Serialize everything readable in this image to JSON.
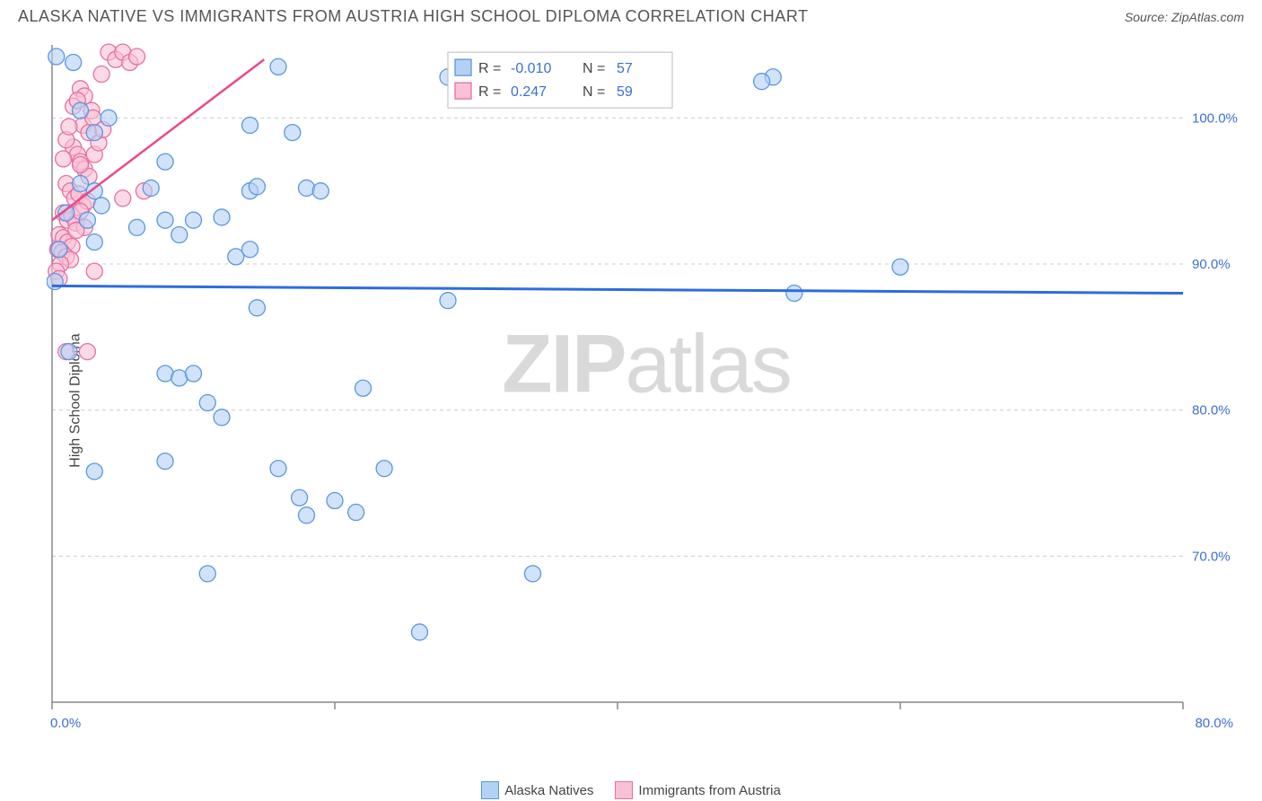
{
  "header": {
    "title": "ALASKA NATIVE VS IMMIGRANTS FROM AUSTRIA HIGH SCHOOL DIPLOMA CORRELATION CHART",
    "source_prefix": "Source: ",
    "source": "ZipAtlas.com"
  },
  "chart": {
    "type": "scatter",
    "ylabel": "High School Diploma",
    "xlim": [
      0,
      80
    ],
    "ylim": [
      60,
      105
    ],
    "xtick_step": 20,
    "xtick_labels": [
      "0.0%",
      "",
      "",
      "",
      "80.0%"
    ],
    "ytick_values": [
      70,
      80,
      90,
      100
    ],
    "ytick_labels": [
      "70.0%",
      "80.0%",
      "90.0%",
      "100.0%"
    ],
    "grid_color": "#cccccc",
    "axis_color": "#888888",
    "background_color": "#ffffff",
    "marker_radius": 9,
    "series": [
      {
        "name": "Alaska Natives",
        "color_fill": "#b3d1f5",
        "color_stroke": "#5a97e0",
        "trend_color": "#2d6cdf",
        "trend": {
          "x1": 0,
          "y1": 88.5,
          "x2": 80,
          "y2": 88.0
        },
        "R": "-0.010",
        "N": "57",
        "points": [
          [
            0.3,
            104.2
          ],
          [
            1.5,
            103.8
          ],
          [
            16,
            103.5
          ],
          [
            28,
            102.8
          ],
          [
            51,
            102.8
          ],
          [
            50.2,
            102.5
          ],
          [
            52.5,
            88.0
          ],
          [
            2,
            100.5
          ],
          [
            3,
            99.0
          ],
          [
            4,
            100.0
          ],
          [
            14,
            99.5
          ],
          [
            17,
            99.0
          ],
          [
            2,
            95.5
          ],
          [
            3,
            95.0
          ],
          [
            7,
            95.2
          ],
          [
            8,
            97.0
          ],
          [
            14,
            95.0
          ],
          [
            14.5,
            95.3
          ],
          [
            18,
            95.2
          ],
          [
            19,
            95.0
          ],
          [
            1,
            93.5
          ],
          [
            2.5,
            93.0
          ],
          [
            3.5,
            94.0
          ],
          [
            6,
            92.5
          ],
          [
            8,
            93.0
          ],
          [
            9,
            92.0
          ],
          [
            10,
            93.0
          ],
          [
            12,
            93.2
          ],
          [
            13,
            90.5
          ],
          [
            14,
            91.0
          ],
          [
            0.2,
            88.8
          ],
          [
            60,
            89.8
          ],
          [
            14.5,
            87.0
          ],
          [
            28,
            87.5
          ],
          [
            0.5,
            91.0
          ],
          [
            3,
            91.5
          ],
          [
            1.2,
            84.0
          ],
          [
            8,
            82.5
          ],
          [
            9,
            82.2
          ],
          [
            10,
            82.5
          ],
          [
            11,
            80.5
          ],
          [
            12,
            79.5
          ],
          [
            22,
            81.5
          ],
          [
            3,
            75.8
          ],
          [
            8,
            76.5
          ],
          [
            16,
            76.0
          ],
          [
            17.5,
            74.0
          ],
          [
            18,
            72.8
          ],
          [
            20,
            73.8
          ],
          [
            21.5,
            73.0
          ],
          [
            23.5,
            76.0
          ],
          [
            11,
            68.8
          ],
          [
            34,
            68.8
          ],
          [
            26,
            64.8
          ]
        ]
      },
      {
        "name": "Immigrants from Austria",
        "color_fill": "#f8c1d5",
        "color_stroke": "#e86fa0",
        "trend_color": "#e84a8a",
        "trend": {
          "x1": 0,
          "y1": 93.0,
          "x2": 15,
          "y2": 104.0
        },
        "R": "0.247",
        "N": "59",
        "points": [
          [
            4,
            104.5
          ],
          [
            4.5,
            104.0
          ],
          [
            5,
            104.5
          ],
          [
            5.5,
            103.8
          ],
          [
            6,
            104.2
          ],
          [
            3.5,
            103.0
          ],
          [
            2,
            102.0
          ],
          [
            2.3,
            101.5
          ],
          [
            2.8,
            100.5
          ],
          [
            2.2,
            99.5
          ],
          [
            2.6,
            99.0
          ],
          [
            2.9,
            100.0
          ],
          [
            1.5,
            98.0
          ],
          [
            1.8,
            97.5
          ],
          [
            2.0,
            97.0
          ],
          [
            2.3,
            96.5
          ],
          [
            2.6,
            96.0
          ],
          [
            2.0,
            96.8
          ],
          [
            1.0,
            95.5
          ],
          [
            1.3,
            95.0
          ],
          [
            1.6,
            94.5
          ],
          [
            1.9,
            94.8
          ],
          [
            2.2,
            94.0
          ],
          [
            2.5,
            94.3
          ],
          [
            0.8,
            93.5
          ],
          [
            1.1,
            93.0
          ],
          [
            1.4,
            93.3
          ],
          [
            1.7,
            92.8
          ],
          [
            2.0,
            93.6
          ],
          [
            2.3,
            92.5
          ],
          [
            0.5,
            92.0
          ],
          [
            0.8,
            91.8
          ],
          [
            1.1,
            91.5
          ],
          [
            1.4,
            91.2
          ],
          [
            1.7,
            92.3
          ],
          [
            5,
            94.5
          ],
          [
            6.5,
            95.0
          ],
          [
            0.4,
            91.0
          ],
          [
            0.7,
            90.8
          ],
          [
            1.0,
            90.5
          ],
          [
            1.3,
            90.3
          ],
          [
            0.6,
            90.0
          ],
          [
            0.3,
            89.5
          ],
          [
            0.5,
            89.0
          ],
          [
            3.0,
            89.5
          ],
          [
            0.8,
            97.2
          ],
          [
            1.0,
            98.5
          ],
          [
            1.2,
            99.4
          ],
          [
            1.5,
            100.8
          ],
          [
            1.8,
            101.2
          ],
          [
            3.0,
            97.5
          ],
          [
            3.3,
            98.3
          ],
          [
            3.6,
            99.2
          ],
          [
            1.0,
            84.0
          ],
          [
            2.5,
            84.0
          ]
        ]
      }
    ],
    "stat_box": {
      "x": 28,
      "y_top": 104.5,
      "rows": [
        {
          "swatch_fill": "#b3d1f5",
          "swatch_stroke": "#5a97e0",
          "R_label": "R =",
          "R_val": "-0.010",
          "N_label": "N =",
          "N_val": "57"
        },
        {
          "swatch_fill": "#f8c1d5",
          "swatch_stroke": "#e86fa0",
          "R_label": "R =",
          "R_val": " 0.247",
          "N_label": "N =",
          "N_val": "59"
        }
      ]
    },
    "bottom_legend": [
      {
        "label": "Alaska Natives",
        "fill": "#b3d1f5",
        "stroke": "#5a97e0"
      },
      {
        "label": "Immigrants from Austria",
        "fill": "#f8c1d5",
        "stroke": "#e86fa0"
      }
    ],
    "watermark": {
      "zip": "ZIP",
      "atlas": "atlas"
    }
  }
}
